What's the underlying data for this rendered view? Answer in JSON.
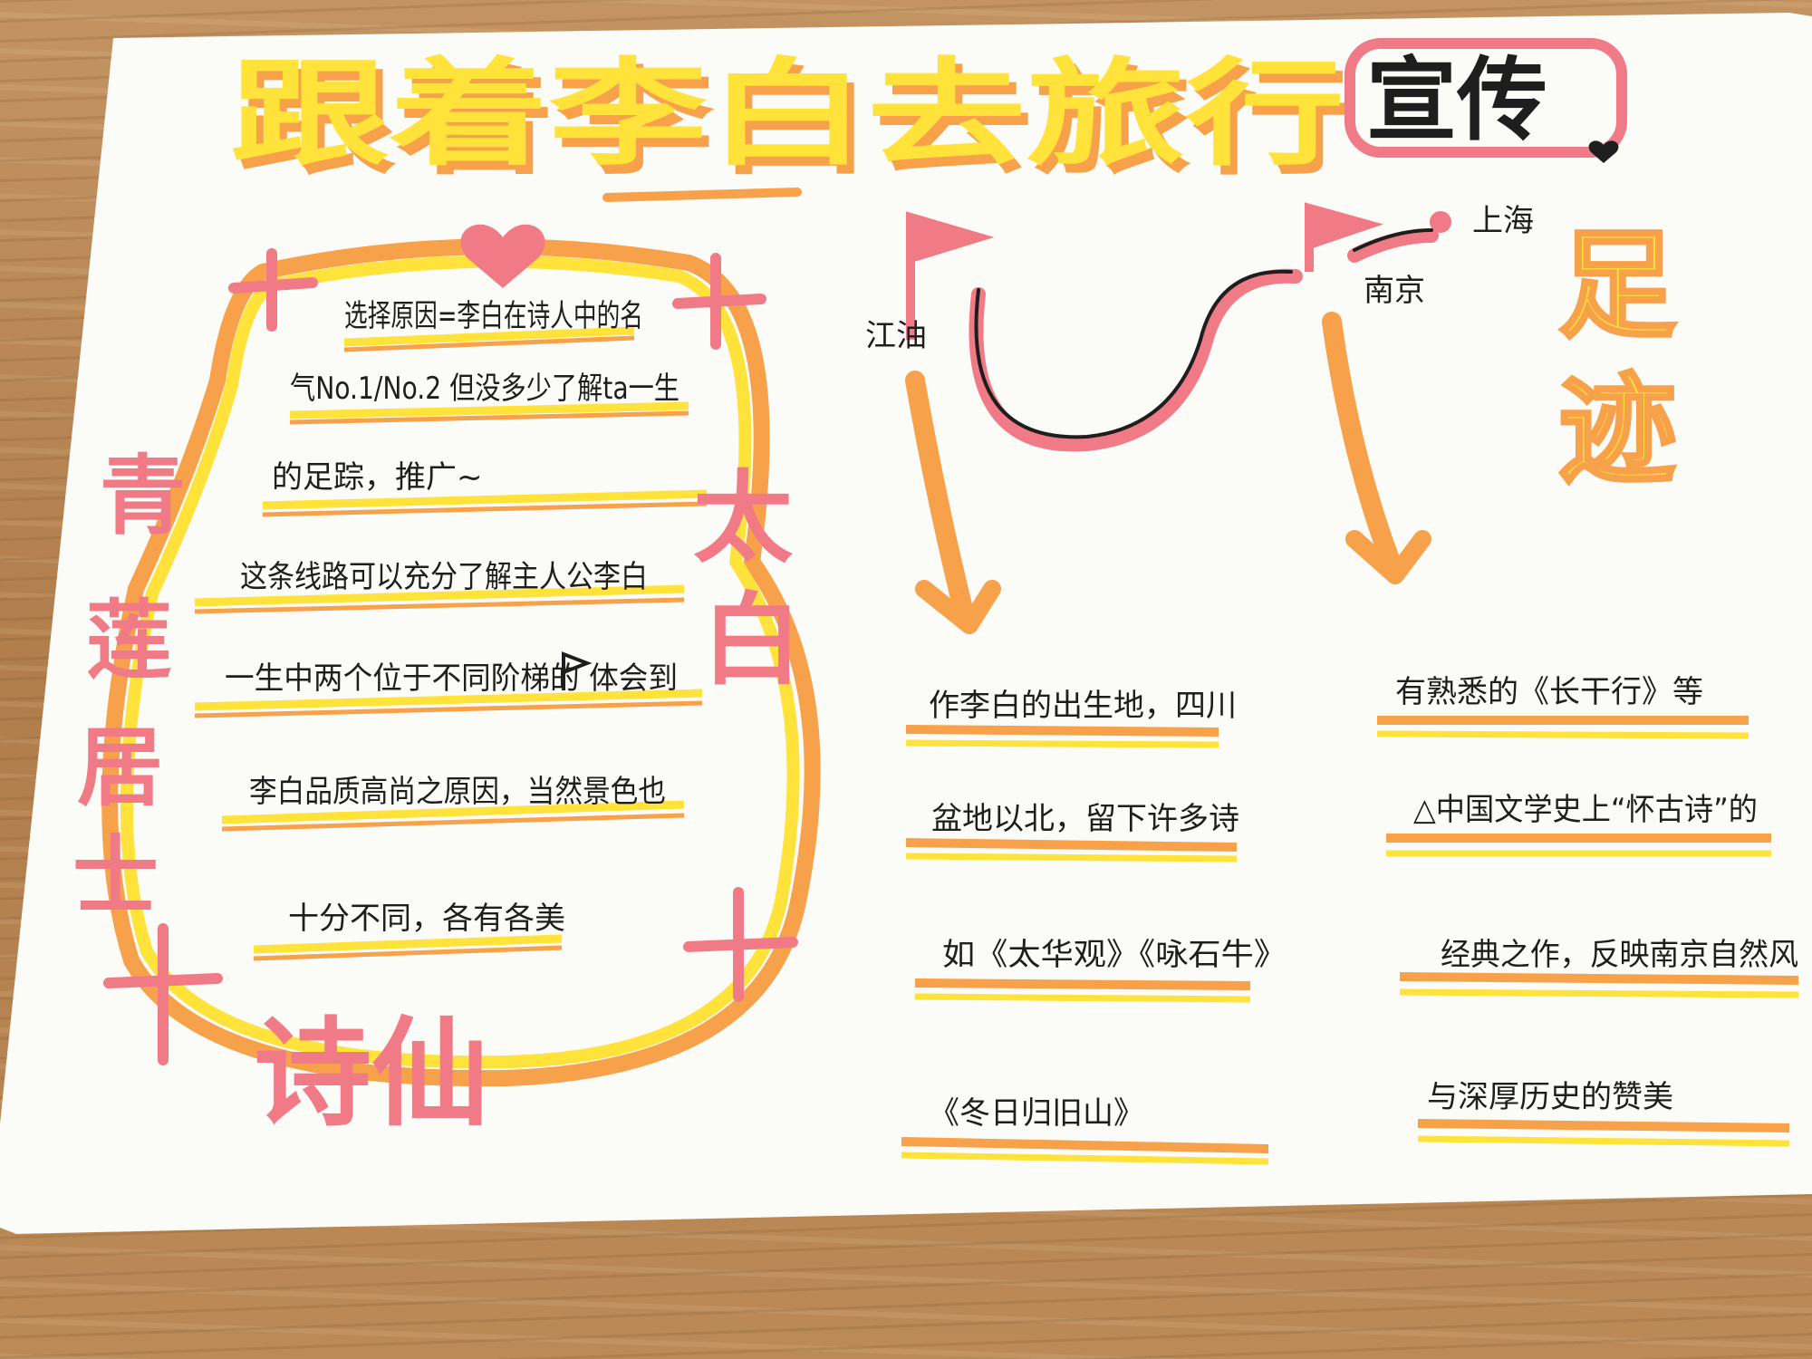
{
  "title": {
    "main": "跟着李白去旅行",
    "tag": "宣传"
  },
  "side_titles": {
    "left": "青莲居士",
    "right": "太白",
    "bottom": "诗仙",
    "footprint": "足迹"
  },
  "map_labels": {
    "jiangyou": "江油",
    "shanghai": "上海",
    "nanjing": "南京"
  },
  "left_lines": [
    "选择原因=李白在诗人中的名",
    "气No.1/No.2 但没多少了解ta一生",
    "的足踪，推广~",
    "这条线路可以充分了解主人公李白",
    "一生中两个位于不同阶梯的 体会到",
    "李白品质高尚之原因，当然景色也",
    "十分不同，各有各美"
  ],
  "middle_lines": [
    "作李白的出生地，四川",
    "盆地以北，留下许多诗",
    "如《太华观》《咏石牛》",
    "《冬日归旧山》"
  ],
  "right_lines": [
    "有熟悉的《长干行》等",
    "△中国文学史上“怀古诗”的",
    "经典之作，反映南京自然风",
    "与深厚历史的赞美"
  ],
  "colors": {
    "yellow": "#ffe23a",
    "orange": "#f7a14a",
    "pink": "#f07a86",
    "ink": "#1e1e1e"
  }
}
